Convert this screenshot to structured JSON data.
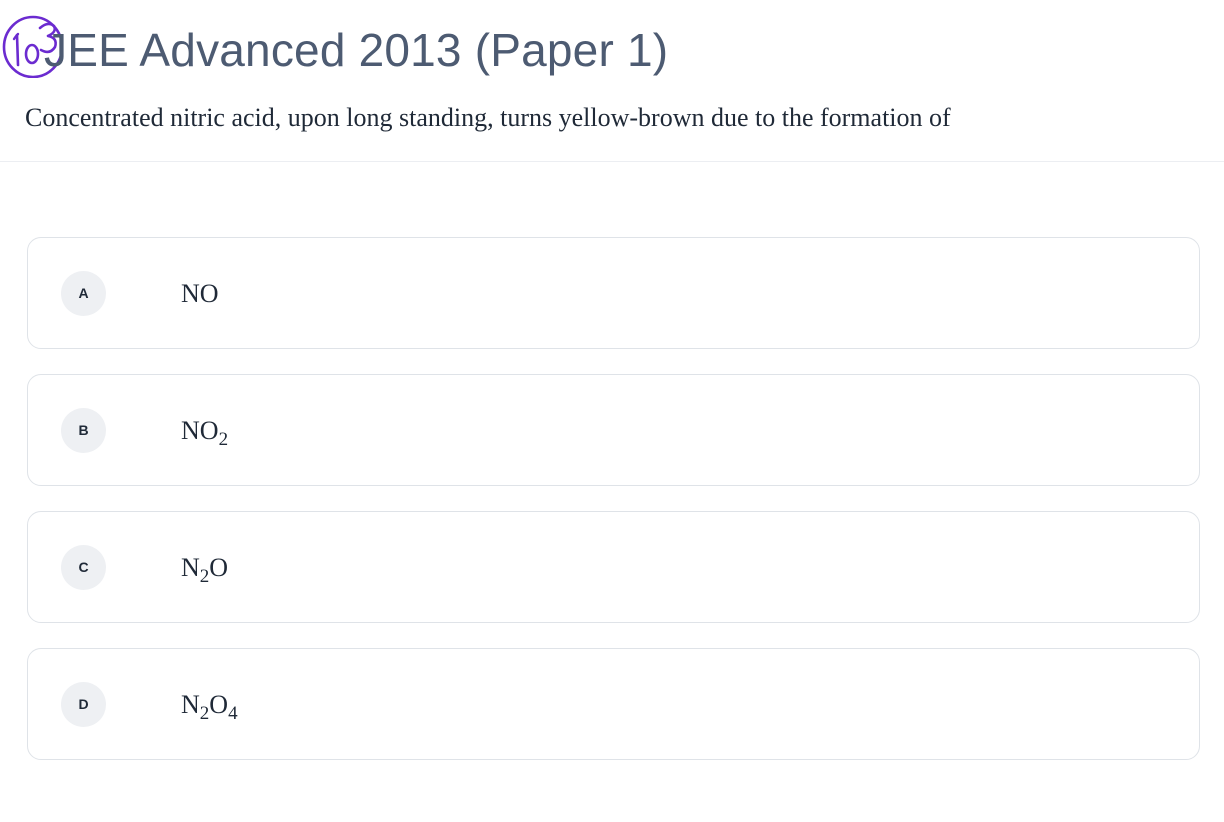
{
  "header": {
    "title": "JEE Advanced 2013 (Paper 1)",
    "annotation_number": "103"
  },
  "question": {
    "text": "Concentrated nitric acid, upon long standing, turns yellow-brown due to the formation of"
  },
  "options": [
    {
      "label": "A",
      "formula": [
        {
          "t": "NO"
        }
      ]
    },
    {
      "label": "B",
      "formula": [
        {
          "t": "NO"
        },
        {
          "sub": "2"
        }
      ]
    },
    {
      "label": "C",
      "formula": [
        {
          "t": "N"
        },
        {
          "sub": "2"
        },
        {
          "t": "O"
        }
      ]
    },
    {
      "label": "D",
      "formula": [
        {
          "t": "N"
        },
        {
          "sub": "2"
        },
        {
          "t": "O"
        },
        {
          "sub": "4"
        }
      ]
    }
  ],
  "colors": {
    "title": "#4d5b72",
    "annotation_ink": "#6b2bd0",
    "badge_bg": "#eef0f3",
    "card_border": "#dfe3e8"
  }
}
